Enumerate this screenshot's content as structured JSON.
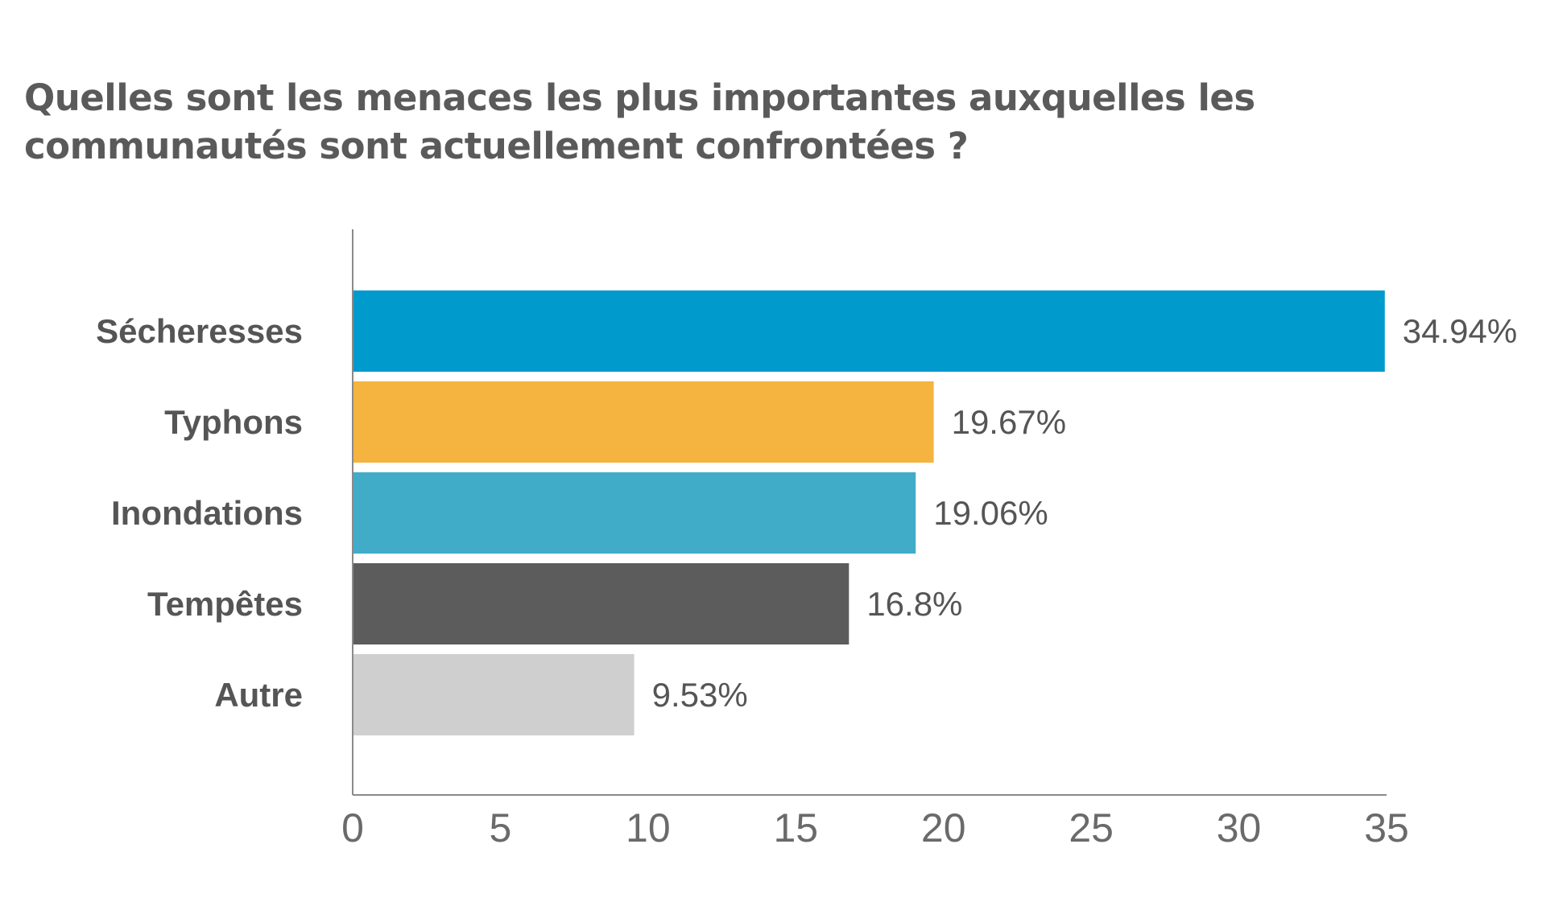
{
  "chart_data": {
    "type": "bar",
    "orientation": "horizontal",
    "title_lines": [
      "Quelles sont les menaces les plus importantes auxquelles les",
      "communautés sont actuellement confrontées ?"
    ],
    "categories": [
      "Sécheresses",
      "Typhons",
      "Inondations",
      "Tempêtes",
      "Autre"
    ],
    "values": [
      34.94,
      19.67,
      19.06,
      16.8,
      9.53
    ],
    "value_labels": [
      "34.94%",
      "19.67%",
      "19.06%",
      "16.8%",
      "9.53%"
    ],
    "colors": [
      "#009ACD",
      "#F5B43F",
      "#40ACC8",
      "#5C5C5C",
      "#CFCFCF"
    ],
    "xlim": [
      0,
      35
    ],
    "xticks": [
      0,
      5,
      10,
      15,
      20,
      25,
      30,
      35
    ],
    "xlabel": "",
    "ylabel": "",
    "grid": false,
    "legend": "none"
  }
}
